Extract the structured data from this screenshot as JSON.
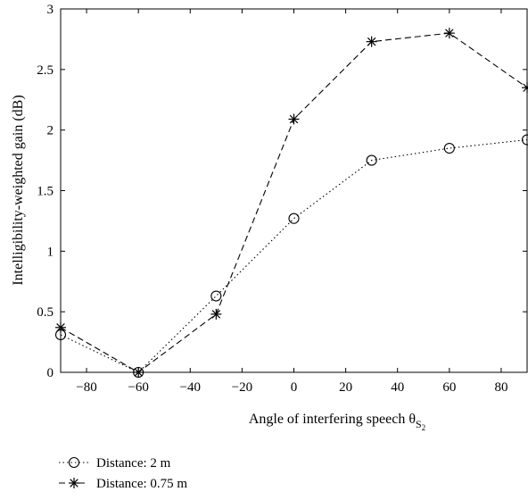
{
  "chart_data": {
    "type": "line",
    "xlabel": "Angle of interfering speech θ",
    "xlabel_subscript_main": "S",
    "xlabel_subscript_sub": "2",
    "ylabel": "Intelligibility-weighted gain (dB)",
    "xlim": [
      -90,
      90
    ],
    "ylim": [
      0,
      3
    ],
    "x_ticks": [
      -80,
      -60,
      -40,
      -20,
      0,
      20,
      40,
      60,
      80
    ],
    "x_tick_labels": [
      "−80",
      "−60",
      "−40",
      "−20",
      "0",
      "20",
      "40",
      "60",
      "80"
    ],
    "y_ticks": [
      0,
      0.5,
      1,
      1.5,
      2,
      2.5,
      3
    ],
    "y_tick_labels": [
      "0",
      "0.5",
      "1",
      "1.5",
      "2",
      "2.5",
      "3"
    ],
    "grid": false,
    "legend_position": "below",
    "x": [
      -90,
      -60,
      -30,
      0,
      30,
      60,
      90
    ],
    "series": [
      {
        "name": "Distance: 2 m",
        "values": [
          0.31,
          0.0,
          0.63,
          1.27,
          1.75,
          1.85,
          1.92
        ],
        "marker": "circle",
        "linestyle": "dotted",
        "color": "#000000"
      },
      {
        "name": "Distance: 0.75 m",
        "values": [
          0.37,
          0.0,
          0.48,
          2.09,
          2.73,
          2.8,
          2.35
        ],
        "marker": "asterisk",
        "linestyle": "dashed",
        "color": "#000000"
      }
    ]
  }
}
